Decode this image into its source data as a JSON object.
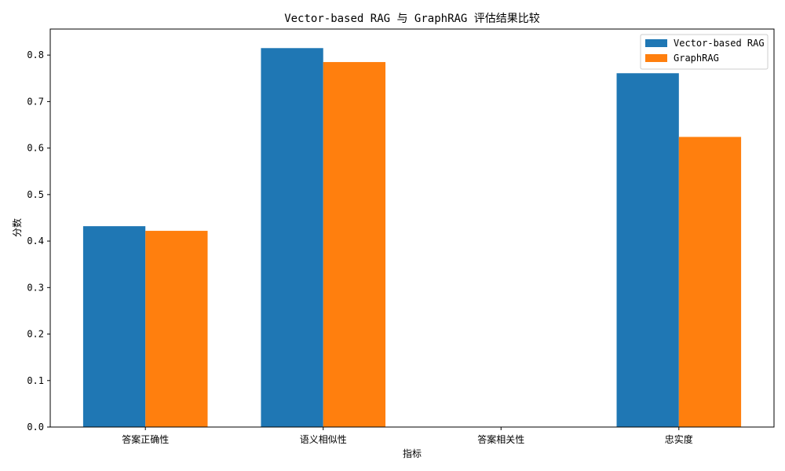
{
  "chart_data": {
    "type": "bar",
    "title": "Vector-based RAG 与 GraphRAG 评估结果比较",
    "xlabel": "指标",
    "ylabel": "分数",
    "categories": [
      "答案正确性",
      "语义相似性",
      "答案相关性",
      "忠实度"
    ],
    "series": [
      {
        "name": "Vector-based RAG",
        "color": "#1f77b4",
        "values": [
          0.432,
          0.815,
          0.0,
          0.761
        ]
      },
      {
        "name": "GraphRAG",
        "color": "#ff7f0e",
        "values": [
          0.422,
          0.785,
          0.0,
          0.624
        ]
      }
    ],
    "ylim": [
      0,
      0.856
    ],
    "yticks": [
      "0.0",
      "0.1",
      "0.2",
      "0.3",
      "0.4",
      "0.5",
      "0.6",
      "0.7",
      "0.8"
    ],
    "legend_position": "top-right",
    "grid": false
  }
}
